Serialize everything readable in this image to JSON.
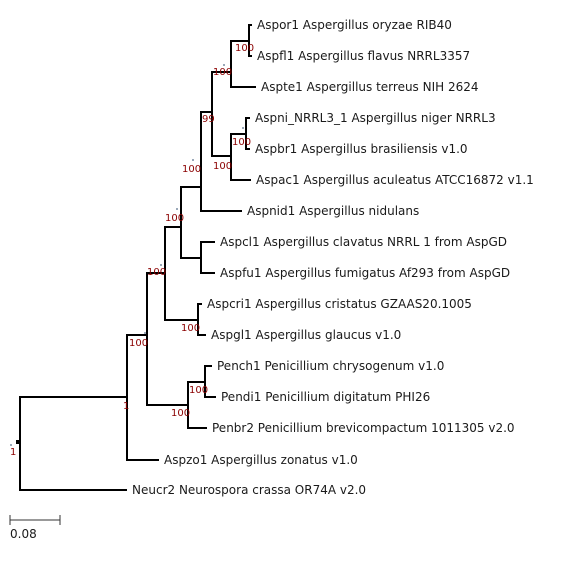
{
  "tree": {
    "leaves": [
      {
        "id": "aspor1",
        "label": "Aspor1 Aspergillus oryzae RIB40"
      },
      {
        "id": "aspfl1",
        "label": "Aspfl1 Aspergillus flavus NRRL3357"
      },
      {
        "id": "aspte1",
        "label": "Aspte1 Aspergillus terreus NIH 2624"
      },
      {
        "id": "aspni",
        "label": "Aspni_NRRL3_1 Aspergillus niger NRRL3"
      },
      {
        "id": "aspbr1",
        "label": "Aspbr1 Aspergillus brasiliensis v1.0"
      },
      {
        "id": "aspac1",
        "label": "Aspac1 Aspergillus aculeatus ATCC16872 v1.1"
      },
      {
        "id": "aspnid1",
        "label": "Aspnid1 Aspergillus nidulans"
      },
      {
        "id": "aspcl1",
        "label": "Aspcl1 Aspergillus clavatus NRRL 1 from AspGD"
      },
      {
        "id": "aspfu1",
        "label": "Aspfu1 Aspergillus fumigatus Af293 from AspGD"
      },
      {
        "id": "aspcri1",
        "label": "Aspcri1 Aspergillus cristatus GZAAS20.1005"
      },
      {
        "id": "aspgl1",
        "label": "Aspgl1 Aspergillus glaucus v1.0"
      },
      {
        "id": "pench1",
        "label": "Pench1 Penicillium chrysogenum v1.0"
      },
      {
        "id": "pendi1",
        "label": "Pendi1 Penicillium digitatum PHI26"
      },
      {
        "id": "penbr2",
        "label": "Penbr2 Penicillium brevicompactum 1011305 v2.0"
      },
      {
        "id": "aspzo1",
        "label": "Aspzo1 Aspergillus zonatus v1.0"
      },
      {
        "id": "neucr2",
        "label": "Neucr2 Neurospora crassa OR74A v2.0"
      }
    ],
    "supports": [
      {
        "id": "s-oryzae-flavus",
        "value": "100"
      },
      {
        "id": "s-flavus-terreus",
        "value": "100"
      },
      {
        "id": "s-niger-brasil",
        "value": "100"
      },
      {
        "id": "s-niger-aculeatus",
        "value": "100"
      },
      {
        "id": "s-section",
        "value": "99"
      },
      {
        "id": "s-nidulans",
        "value": "100"
      },
      {
        "id": "s-clavatus-fumigatus",
        "value": "100"
      },
      {
        "id": "s-core",
        "value": "100"
      },
      {
        "id": "s-cristatus-glaucus",
        "value": "100"
      },
      {
        "id": "s-aspergillus",
        "value": "100"
      },
      {
        "id": "s-chrys-digit",
        "value": "100"
      },
      {
        "id": "s-penicillium",
        "value": "100"
      },
      {
        "id": "s-eurotiales",
        "value": "1"
      },
      {
        "id": "s-root",
        "value": "1"
      }
    ]
  },
  "scale": {
    "label": "0.08"
  }
}
